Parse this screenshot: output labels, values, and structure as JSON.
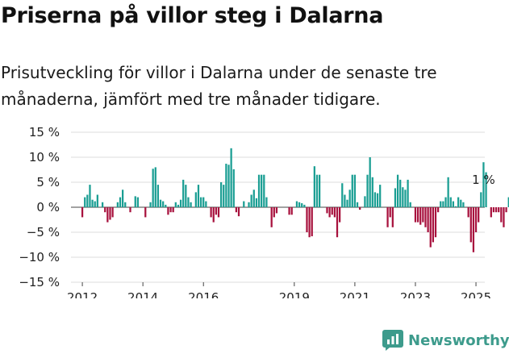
{
  "header": {
    "title": "Priserna på villor steg i Dalarna",
    "subtitle": "Prisutveckling för villor i Dalarna under de senaste tre månaderna, jämfört med tre månader tidigare."
  },
  "brand": {
    "name": "Newsworthy",
    "icon": "newsworthy-logo-icon",
    "color": "#3d9b8c"
  },
  "chart_data": {
    "type": "bar",
    "title": "",
    "xlabel": "",
    "ylabel": "",
    "ylim": [
      -15,
      15
    ],
    "yticks": [
      -15,
      -10,
      -5,
      0,
      5,
      10,
      15
    ],
    "ytick_labels": [
      "−15 %",
      "−10 %",
      "−5 %",
      "0 %",
      "5 %",
      "10 %",
      "15 %"
    ],
    "x_range": [
      "2011-09",
      "2025-04"
    ],
    "xticks": [
      "2012-01",
      "2014-01",
      "2016-01",
      "2019-01",
      "2021-01",
      "2023-01",
      "2025-01"
    ],
    "xtick_labels": [
      "2012",
      "2014",
      "2016",
      "2019",
      "2021",
      "2023",
      "2025"
    ],
    "grid": "horizontal",
    "legend": "none",
    "colors": {
      "positive": "#1a9e93",
      "negative": "#a8123e"
    },
    "annotation": {
      "text": "1 %",
      "month": "2025-04",
      "value": 1
    },
    "series": [
      {
        "start_month": "2011-10",
        "values": [
          0,
          0,
          0,
          -2,
          2,
          2.5,
          4.5,
          1.5,
          1.2,
          2.5,
          0,
          1,
          -1,
          -3,
          -2.5,
          -2,
          0,
          1,
          2,
          3.5,
          1,
          0,
          -1,
          0,
          2.2,
          2,
          0,
          0,
          -2,
          0,
          1,
          7.7,
          8,
          4.5,
          1.5,
          1.2,
          0.5,
          -1.5,
          -1,
          -1,
          1,
          0.5,
          1.5,
          5.5,
          4.5,
          2,
          1,
          0,
          3,
          4.5,
          2,
          2,
          1.2,
          0,
          -2,
          -3,
          -1.5,
          -2,
          5,
          4.5,
          8.7,
          8.5,
          11.8,
          7.6,
          -1,
          -1.8,
          0,
          1.2,
          0,
          1,
          2.5,
          3.5,
          1.8,
          6.5,
          6.5,
          6.5,
          2,
          0,
          -4,
          -2,
          -1.2,
          0,
          0,
          0,
          0,
          -1.5,
          -1.5,
          0,
          1.2,
          1,
          0.8,
          0.5,
          -5,
          -6,
          -5.8,
          8.2,
          6.5,
          6.5,
          0,
          0,
          -1.2,
          -2,
          -1.5,
          -2,
          -6,
          -3,
          4.8,
          2.5,
          1.5,
          3.5,
          6.5,
          6.5,
          1,
          -0.5,
          0,
          2.2,
          6.5,
          10,
          6,
          3,
          2.8,
          4.5,
          0,
          0,
          -4,
          -2,
          -4,
          3.8,
          6.5,
          5.5,
          4,
          3.5,
          5.5,
          1,
          0,
          -3,
          -3,
          -3.5,
          -3,
          -4,
          -5,
          -8,
          -7,
          -6,
          -1,
          1.2,
          1.2,
          2,
          6,
          2,
          1.2,
          0.2,
          2,
          1.5,
          1,
          0,
          -2,
          -7,
          -9,
          -5,
          -3,
          3,
          9,
          7,
          0,
          -2,
          -1,
          -1,
          -1,
          -3,
          -4,
          -1,
          2,
          3,
          1
        ]
      }
    ]
  }
}
